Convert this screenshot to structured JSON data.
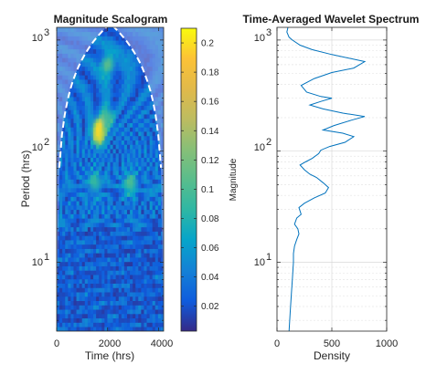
{
  "chart_data": [
    {
      "type": "heatmap",
      "title": "Magnitude Scalogram",
      "xlabel": "Time (hrs)",
      "ylabel": "Period (hrs)",
      "xlim": [
        0,
        4200
      ],
      "xticks": [
        0,
        2000,
        4000
      ],
      "xtick_labels": [
        "0",
        "2000",
        "4000"
      ],
      "ylim": [
        2.4,
        1300
      ],
      "yscale": "log",
      "yticks": [
        10,
        100,
        1000
      ],
      "ytick_labels": [
        "10",
        "10",
        "10"
      ],
      "ytick_exponents": [
        "1",
        "2",
        "3"
      ],
      "cone_of_influence": "white dashed",
      "colormap": "parula",
      "colorbar": {
        "label": "Magnitude",
        "lim": [
          0.003,
          0.21
        ],
        "ticks": [
          0.02,
          0.04,
          0.06,
          0.08,
          0.1,
          0.12,
          0.14,
          0.16,
          0.18,
          0.2
        ],
        "tick_labels": [
          "0.02",
          "0.04",
          "0.06",
          "0.08",
          "0.1",
          "0.12",
          "0.14",
          "0.16",
          "0.18",
          "0.2"
        ]
      },
      "hotspots": [
        {
          "time": 1650,
          "period": 150,
          "magnitude": 0.2
        },
        {
          "time": 2000,
          "period": 600,
          "magnitude": 0.11
        },
        {
          "time": 2000,
          "period": 200,
          "magnitude": 0.1
        },
        {
          "time": 2900,
          "period": 52,
          "magnitude": 0.1
        },
        {
          "time": 1500,
          "period": 52,
          "magnitude": 0.09
        }
      ]
    },
    {
      "type": "line",
      "title": "Time-Averaged Wavelet Spectrum",
      "xlabel": "Density",
      "ylabel": "",
      "xlim": [
        0,
        1000
      ],
      "xticks": [
        0,
        500,
        1000
      ],
      "xtick_labels": [
        "0",
        "500",
        "1000"
      ],
      "ylim": [
        2.4,
        1300
      ],
      "yscale": "log",
      "yticks": [
        10,
        100,
        1000
      ],
      "ytick_labels": [
        "10",
        "10",
        "10"
      ],
      "ytick_exponents": [
        "1",
        "2",
        "3"
      ],
      "grid": true,
      "line_color": "#0072bd",
      "series": [
        {
          "x": [
            100,
            90,
            100,
            110,
            140,
            210,
            320,
            500,
            800,
            700,
            500,
            340,
            220,
            270,
            400,
            500,
            400,
            300,
            420,
            600,
            800,
            680,
            520,
            420,
            600,
            700,
            620,
            480,
            400,
            380,
            320,
            260,
            210,
            250,
            300,
            360,
            420,
            470,
            440,
            340,
            250,
            200,
            210,
            220,
            180,
            160,
            190,
            200,
            180,
            160,
            150,
            150,
            140,
            130,
            120,
            110
          ],
          "y": [
            1300,
            1180,
            1120,
            1060,
            1000,
            900,
            820,
            740,
            640,
            560,
            510,
            450,
            390,
            340,
            310,
            300,
            280,
            260,
            240,
            220,
            205,
            190,
            170,
            155,
            145,
            135,
            120,
            110,
            102,
            95,
            86,
            80,
            75,
            68,
            62,
            58,
            52,
            47,
            42,
            38,
            34,
            31,
            29,
            27,
            25,
            22,
            20,
            18,
            16,
            14,
            12,
            10,
            7,
            5,
            3.5,
            2.4
          ]
        }
      ]
    }
  ]
}
